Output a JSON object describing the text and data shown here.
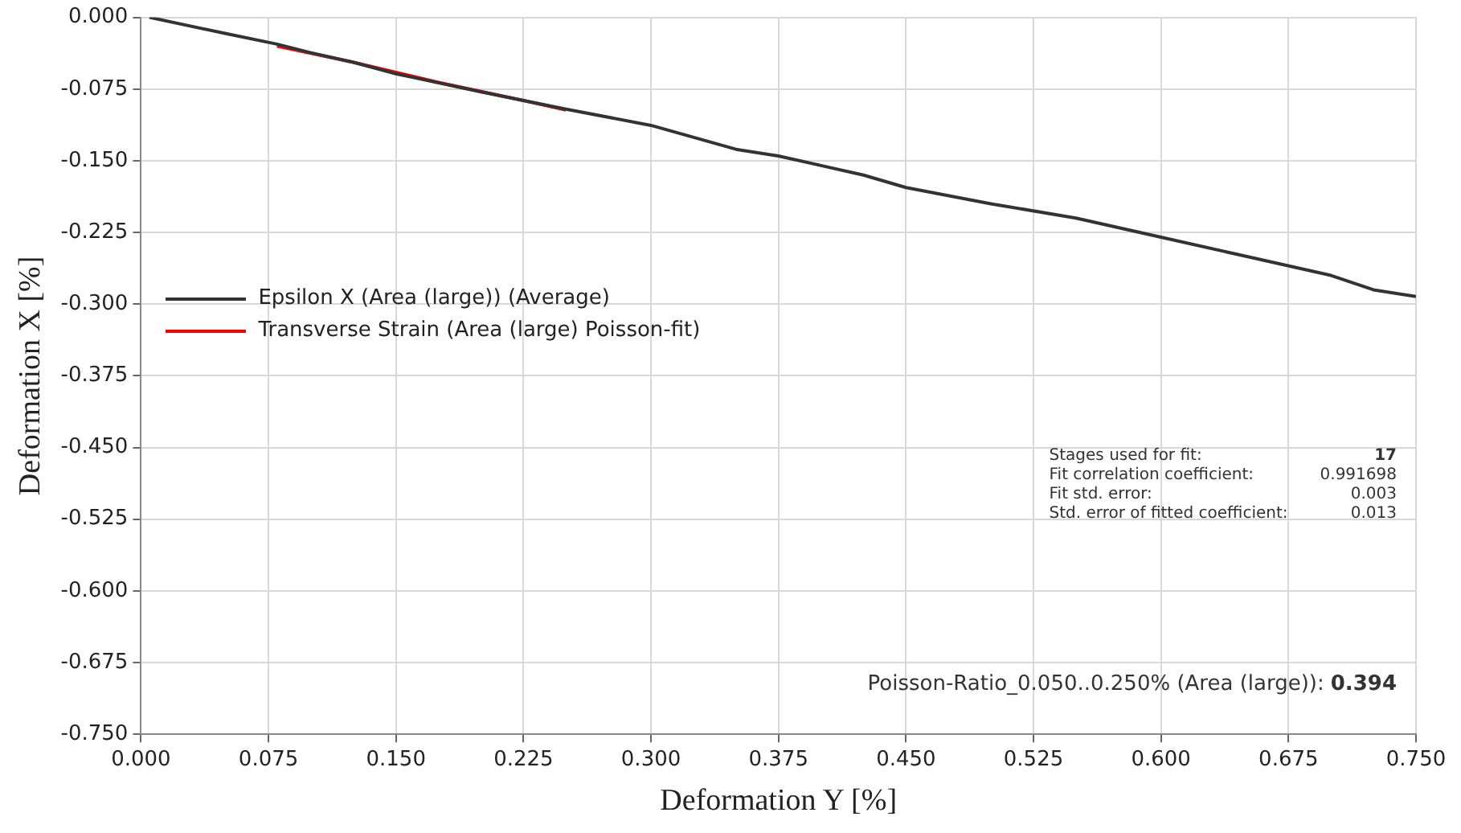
{
  "chart_data": {
    "type": "line",
    "xlabel": "Deformation Y [%]",
    "ylabel": "Deformation X [%]",
    "xlim": [
      0,
      0.75
    ],
    "ylim": [
      -0.75,
      0
    ],
    "xticks": [
      {
        "value": 0,
        "label": "0.000"
      },
      {
        "value": 0.075,
        "label": "0.075"
      },
      {
        "value": 0.15,
        "label": "0.150"
      },
      {
        "value": 0.225,
        "label": "0.225"
      },
      {
        "value": 0.3,
        "label": "0.300"
      },
      {
        "value": 0.375,
        "label": "0.375"
      },
      {
        "value": 0.45,
        "label": "0.450"
      },
      {
        "value": 0.525,
        "label": "0.525"
      },
      {
        "value": 0.6,
        "label": "0.600"
      },
      {
        "value": 0.675,
        "label": "0.675"
      },
      {
        "value": 0.75,
        "label": "0.750"
      }
    ],
    "yticks": [
      {
        "value": 0,
        "label": "0.000"
      },
      {
        "value": -0.075,
        "label": "-0.075"
      },
      {
        "value": -0.15,
        "label": "-0.150"
      },
      {
        "value": -0.225,
        "label": "-0.225"
      },
      {
        "value": -0.3,
        "label": "-0.300"
      },
      {
        "value": -0.375,
        "label": "-0.375"
      },
      {
        "value": -0.45,
        "label": "-0.450"
      },
      {
        "value": -0.525,
        "label": "-0.525"
      },
      {
        "value": -0.6,
        "label": "-0.600"
      },
      {
        "value": -0.675,
        "label": "-0.675"
      },
      {
        "value": -0.75,
        "label": "-0.750"
      }
    ],
    "series": [
      {
        "name": "Epsilon X (Area (large)) (Average)",
        "color": "#333333",
        "x": [
          0.005,
          0.05,
          0.08,
          0.1,
          0.125,
          0.15,
          0.2,
          0.25,
          0.3,
          0.35,
          0.375,
          0.4,
          0.425,
          0.45,
          0.5,
          0.55,
          0.6,
          0.65,
          0.7,
          0.725,
          0.75
        ],
        "values": [
          0,
          -0.017,
          -0.028,
          -0.037,
          -0.047,
          -0.059,
          -0.078,
          -0.096,
          -0.113,
          -0.138,
          -0.145,
          -0.155,
          -0.165,
          -0.178,
          -0.195,
          -0.21,
          -0.23,
          -0.25,
          -0.27,
          -0.285,
          -0.292
        ]
      },
      {
        "name": "Transverse Strain (Area (large) Poisson-fit)",
        "color": "#ff0000",
        "x": [
          0.08,
          0.125,
          0.175,
          0.225,
          0.25
        ],
        "values": [
          -0.03,
          -0.047,
          -0.068,
          -0.087,
          -0.097
        ]
      }
    ],
    "annotations": [
      "Stages used for fit:",
      "17",
      "Fit correlation coefficient:",
      "0.991698",
      "Fit std. error:",
      "0.003",
      "Std. error of fitted coefficient:",
      "0.013",
      "Poisson-Ratio_0.050..0.250% (Area (large)):",
      "0.394"
    ],
    "grid": true,
    "legend": "left",
    "marker": "none",
    "line_style": "solid"
  }
}
